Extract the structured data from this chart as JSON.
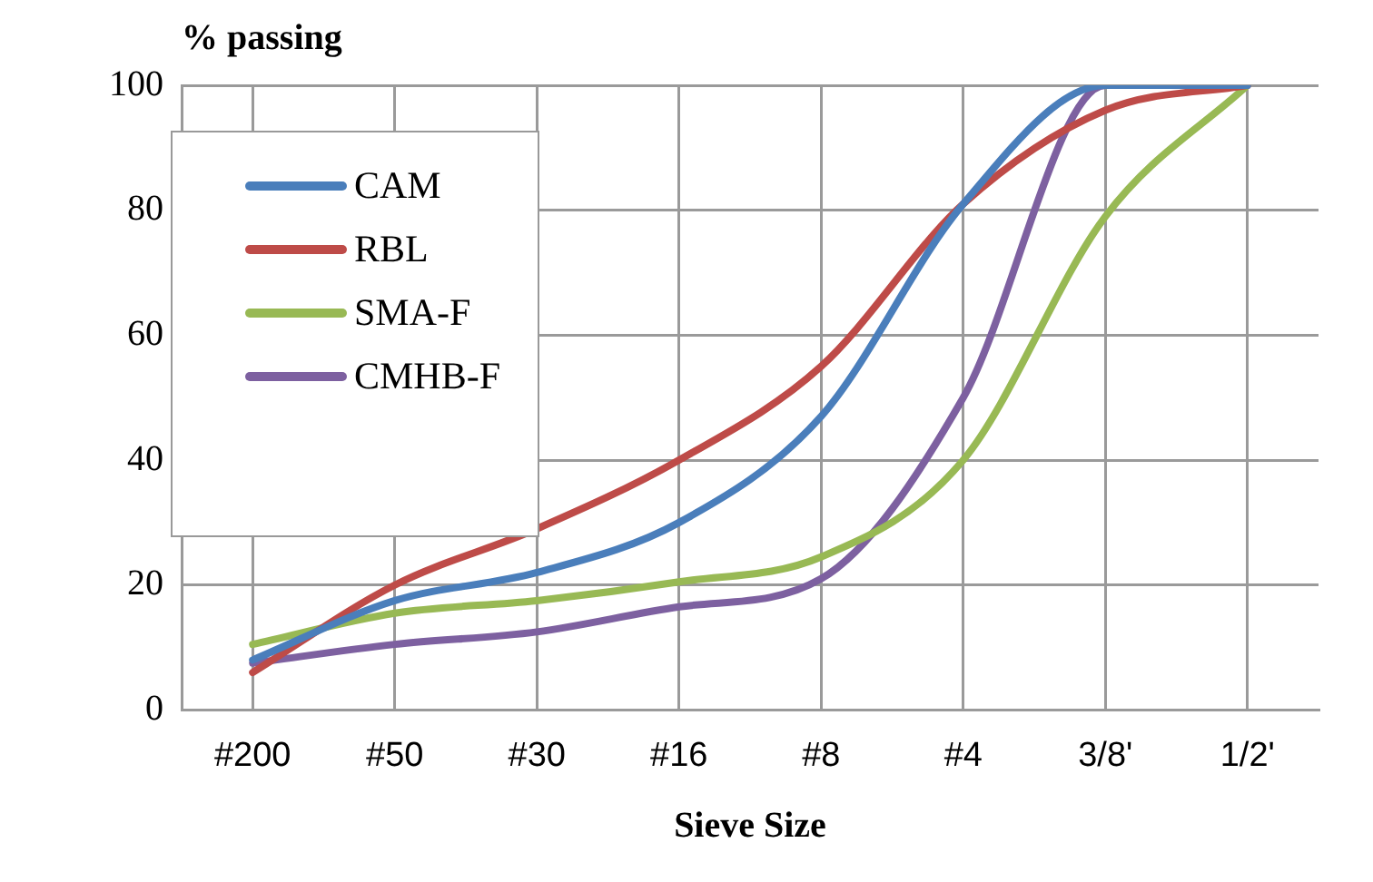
{
  "chart_data": {
    "type": "line",
    "xlabel": "Sieve Size",
    "ylabel": "% passing",
    "categories": [
      "#200",
      "#50",
      "#30",
      "#16",
      "#8",
      "#4",
      "3/8'",
      "1/2'"
    ],
    "series": [
      {
        "name": "CAM",
        "color": "#4a7ebb",
        "values": [
          8,
          17.5,
          22,
          30,
          47,
          81,
          100,
          100
        ]
      },
      {
        "name": "RBL",
        "color": "#be4b48",
        "values": [
          6,
          20,
          29,
          40,
          55,
          81,
          96,
          100
        ]
      },
      {
        "name": "SMA-F",
        "color": "#98b954",
        "values": [
          10.5,
          15.5,
          17.5,
          20.5,
          24.5,
          40,
          79,
          100
        ]
      },
      {
        "name": "CMHB-F",
        "color": "#7d60a0",
        "values": [
          7.5,
          10.5,
          12.5,
          16.5,
          21,
          50,
          100,
          100
        ]
      }
    ],
    "ylim": [
      0,
      100
    ],
    "yticks": [
      0,
      20,
      40,
      60,
      80,
      100
    ],
    "grid": true,
    "legend": "top left"
  }
}
